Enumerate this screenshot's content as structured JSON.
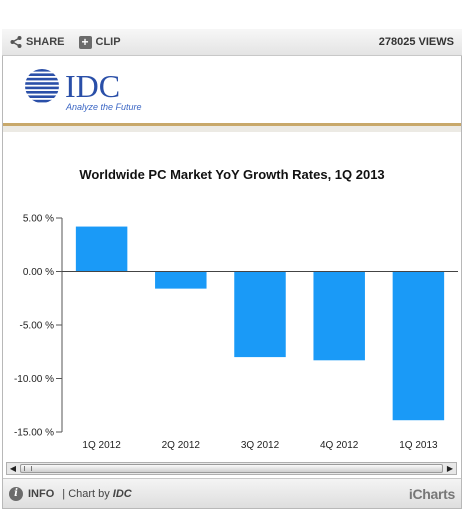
{
  "toolbar": {
    "share_label": "SHARE",
    "clip_label": "CLIP",
    "views_label": "278025 VIEWS",
    "share_icon": "share-icon",
    "clip_icon": "plus-icon"
  },
  "logo": {
    "brand": "IDC",
    "tagline": "Analyze the Future",
    "brand_color": "#2a4fa8"
  },
  "chart_data": {
    "type": "bar",
    "title": "Worldwide PC Market YoY Growth  Rates, 1Q 2013",
    "xlabel": "",
    "ylabel": "",
    "categories": [
      "1Q 2012",
      "2Q 2012",
      "3Q 2012",
      "4Q 2012",
      "1Q 2013"
    ],
    "values": [
      4.2,
      -1.6,
      -8.0,
      -8.3,
      -13.9
    ],
    "ylim": [
      -15,
      5
    ],
    "yticks": [
      5,
      0,
      -5,
      -10,
      -15
    ],
    "ytick_labels": [
      "5.00 %",
      "0.00 %",
      "-5.00 %",
      "-10.00 %",
      "-15.00 %"
    ],
    "bar_color": "#1a9af7",
    "grid": false,
    "legend": "none"
  },
  "footer": {
    "info_label": "INFO",
    "byline_prefix": "| Chart by",
    "byline_brand": "IDC",
    "powered_by": "iCharts",
    "info_icon": "info-icon"
  }
}
